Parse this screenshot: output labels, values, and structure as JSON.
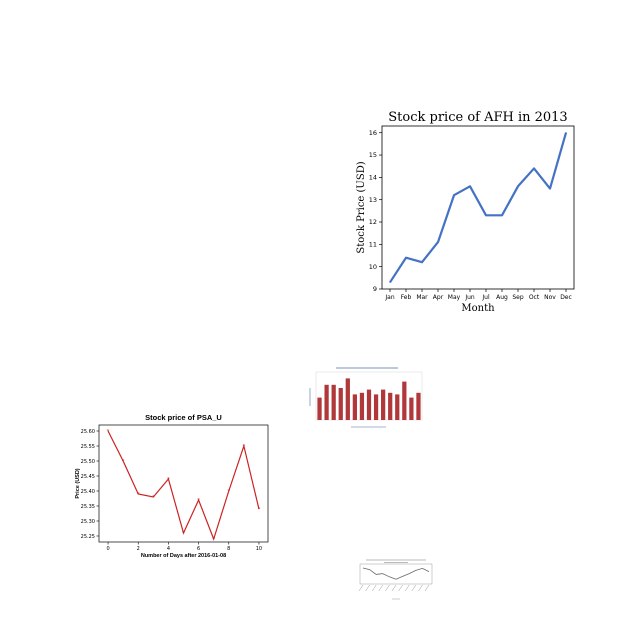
{
  "chart_data": [
    {
      "type": "line",
      "title": "Stock price of AFH in 2013",
      "xlabel": "Month",
      "ylabel": "Stock Price (USD)",
      "categories": [
        "Jan",
        "Feb",
        "Mar",
        "Apr",
        "May",
        "Jun",
        "Jul",
        "Aug",
        "Sep",
        "Oct",
        "Nov",
        "Dec"
      ],
      "values": [
        9.3,
        10.4,
        10.2,
        11.1,
        13.2,
        13.6,
        12.3,
        12.3,
        13.6,
        14.4,
        13.5,
        16.0
      ],
      "ylim": [
        9,
        16.3
      ],
      "yticks": [
        9,
        10,
        11,
        12,
        13,
        14,
        15,
        16
      ],
      "color": "#4472c4",
      "grid": false
    },
    {
      "type": "line",
      "title": "Stock price of PSA_U",
      "xlabel": "Number of Days after 2016-01-08",
      "ylabel": "Price (USD)",
      "x": [
        0,
        1,
        2,
        3,
        4,
        5,
        6,
        7,
        8,
        9,
        10
      ],
      "values": [
        25.6,
        25.5,
        25.39,
        25.38,
        25.44,
        25.26,
        25.37,
        25.24,
        25.4,
        25.55,
        25.34
      ],
      "xlim": [
        -0.6,
        10.6
      ],
      "ylim": [
        25.23,
        25.62
      ],
      "xticks": [
        0,
        2,
        4,
        6,
        8,
        10
      ],
      "yticks": [
        25.25,
        25.3,
        25.35,
        25.4,
        25.45,
        25.5,
        25.55,
        25.6
      ],
      "color": "#cc2222",
      "marker": "*",
      "grid": false
    },
    {
      "type": "bar",
      "title": "",
      "values": [
        14,
        22,
        22,
        20,
        26,
        16,
        17,
        19,
        16,
        19,
        17,
        16,
        24,
        14,
        17
      ],
      "ylim": [
        0,
        30
      ],
      "color": "#b0383a"
    },
    {
      "type": "line",
      "title": "",
      "values": [
        6,
        5.6,
        4.4,
        4.6,
        3.8,
        3.2,
        3.9,
        4.6,
        5.4,
        5.9,
        5.1
      ],
      "ylim": [
        2,
        7
      ],
      "color": "#666666"
    }
  ]
}
